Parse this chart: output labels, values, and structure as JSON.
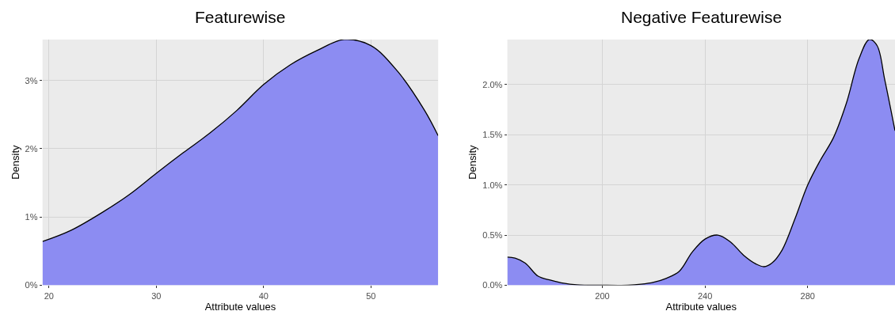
{
  "chart_data": [
    {
      "type": "area",
      "title": "Featurewise",
      "xlabel": "Attribute values",
      "ylabel": "Density",
      "grid": true,
      "x": [
        19.4,
        22,
        25,
        27.5,
        30,
        32.5,
        35,
        37.5,
        40,
        42.5,
        45,
        47.5,
        50,
        52.5,
        55,
        56.26
      ],
      "series": [
        {
          "color": "#8c8cf2",
          "values": [
            0.64,
            0.8,
            1.07,
            1.33,
            1.64,
            1.94,
            2.23,
            2.56,
            2.94,
            3.23,
            3.44,
            3.6,
            3.51,
            3.13,
            2.56,
            2.19
          ]
        }
      ],
      "xlim": [
        19.4,
        56.26
      ],
      "xticks": [
        20,
        30,
        40,
        50
      ],
      "ylim": [
        0,
        3.6
      ],
      "yticks": [
        {
          "value": 0,
          "label": "0%"
        },
        {
          "value": 1,
          "label": "1%"
        },
        {
          "value": 2,
          "label": "2%"
        },
        {
          "value": 3,
          "label": "3%"
        }
      ]
    },
    {
      "type": "area",
      "title": "Negative Featurewise",
      "xlabel": "Attribute values",
      "ylabel": "Density",
      "grid": true,
      "x": [
        163,
        166,
        170,
        175,
        180,
        185,
        190,
        200,
        210,
        215,
        220,
        225,
        230,
        235,
        240,
        245,
        250,
        255,
        260,
        263,
        266,
        270,
        275,
        280,
        285,
        290,
        295,
        300,
        304,
        307,
        310,
        314
      ],
      "series": [
        {
          "color": "#8c8cf2",
          "values": [
            0.28,
            0.27,
            0.22,
            0.09,
            0.05,
            0.02,
            0.005,
            0,
            0,
            0.01,
            0.03,
            0.07,
            0.14,
            0.33,
            0.46,
            0.5,
            0.43,
            0.3,
            0.21,
            0.185,
            0.22,
            0.35,
            0.66,
            1.0,
            1.25,
            1.47,
            1.81,
            2.26,
            2.45,
            2.39,
            2.05,
            1.54
          ]
        }
      ],
      "xlim": [
        163,
        314
      ],
      "xticks": [
        200,
        240,
        280
      ],
      "ylim": [
        0,
        2.45
      ],
      "yticks": [
        {
          "value": 0,
          "label": "0.0%"
        },
        {
          "value": 0.5,
          "label": "0.5%"
        },
        {
          "value": 1,
          "label": "1.0%"
        },
        {
          "value": 1.5,
          "label": "1.5%"
        },
        {
          "value": 2,
          "label": "2.0%"
        }
      ]
    }
  ]
}
